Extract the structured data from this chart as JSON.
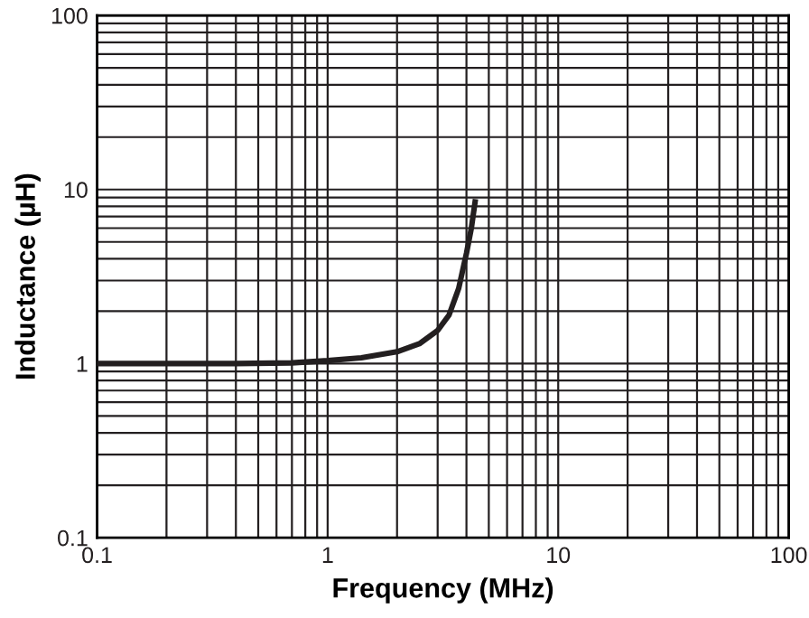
{
  "chart_data": {
    "type": "line",
    "xlabel": "Frequency (MHz)",
    "ylabel": "Inductance (µH)",
    "log": "xy",
    "xlim": [
      0.1,
      100
    ],
    "ylim": [
      0.1,
      100
    ],
    "xticks": [
      0.1,
      1,
      10,
      100
    ],
    "yticks": [
      0.1,
      1,
      10,
      100
    ],
    "grid": true,
    "marker": "none",
    "line_style": "solid",
    "series": [
      {
        "color": "#231f20",
        "x": [
          0.1,
          0.2,
          0.4,
          0.7,
          1.0,
          1.4,
          2.0,
          2.5,
          3.0,
          3.36,
          3.7,
          4.0,
          4.2,
          4.36
        ],
        "values": [
          1.0,
          1.0,
          1.0,
          1.01,
          1.04,
          1.08,
          1.17,
          1.3,
          1.55,
          1.9,
          2.7,
          4.3,
          6.0,
          8.5
        ]
      }
    ]
  }
}
